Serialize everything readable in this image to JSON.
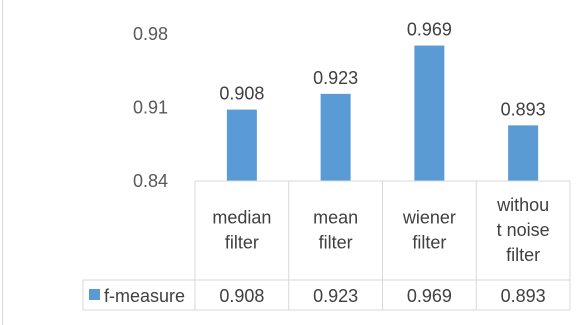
{
  "chart_data": {
    "type": "bar",
    "categories": [
      [
        "median",
        "filter"
      ],
      [
        "mean",
        "filter"
      ],
      [
        "wiener",
        "filter"
      ],
      [
        "withou",
        "t noise",
        "filter"
      ]
    ],
    "series": [
      {
        "name": "f-measure",
        "values": [
          0.908,
          0.923,
          0.969,
          0.893
        ],
        "color": "#5b9bd5"
      }
    ],
    "data_labels": [
      "0.908",
      "0.923",
      "0.969",
      "0.893"
    ],
    "table_values": [
      "0.908",
      "0.923",
      "0.969",
      "0.893"
    ],
    "y_ticks": [
      "0.98",
      "0.91",
      "0.84"
    ],
    "ylim": [
      0.84,
      0.98
    ],
    "grid": false,
    "data_table": true,
    "legend_placement": "data-table"
  }
}
